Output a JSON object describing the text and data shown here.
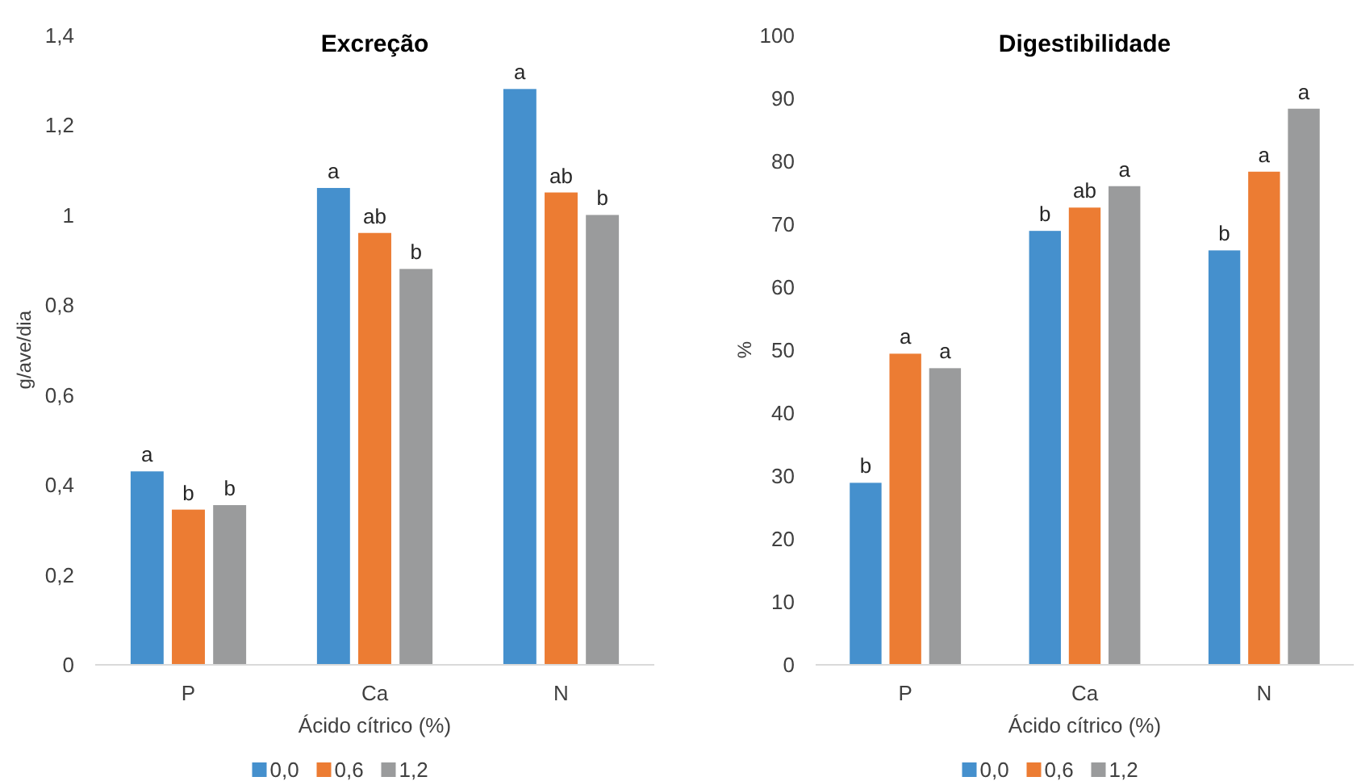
{
  "chart_data": [
    {
      "type": "bar",
      "title": "Excreção",
      "xlabel": "Ácido cítrico (%)",
      "ylabel": "g/ave/dia",
      "categories": [
        "P",
        "Ca",
        "N"
      ],
      "series": [
        {
          "name": "0,0",
          "color": "#4590cd",
          "values": [
            0.43,
            1.06,
            1.28
          ],
          "value_labels": [
            "a",
            "a",
            "a"
          ]
        },
        {
          "name": "0,6",
          "color": "#ec7c33",
          "values": [
            0.345,
            0.96,
            1.05
          ],
          "value_labels": [
            "b",
            "ab",
            "ab"
          ]
        },
        {
          "name": "1,2",
          "color": "#9a9b9c",
          "values": [
            0.355,
            0.88,
            1.0
          ],
          "value_labels": [
            "b",
            "b",
            "b"
          ]
        }
      ],
      "ylim": [
        0,
        1.4
      ],
      "yticks": [
        0,
        {
          "value": 0.2,
          "label": "0,2"
        },
        {
          "value": 0.4,
          "label": "0,4"
        },
        {
          "value": 0.6,
          "label": "0,6"
        },
        {
          "value": 0.8,
          "label": "0,8"
        },
        1,
        {
          "value": 1.2,
          "label": "1,2"
        },
        {
          "value": 1.4,
          "label": "1,4"
        }
      ],
      "legend": "bottom"
    },
    {
      "type": "bar",
      "title": "Digestibilidade",
      "xlabel": "Ácido cítrico (%)",
      "ylabel": "%",
      "categories": [
        "P",
        "Ca",
        "N"
      ],
      "series": [
        {
          "name": "0,0",
          "color": "#4590cd",
          "values": [
            28.9,
            68.9,
            65.8
          ],
          "value_labels": [
            "b",
            "b",
            "b"
          ]
        },
        {
          "name": "0,6",
          "color": "#ec7c33",
          "values": [
            49.4,
            72.6,
            78.3
          ],
          "value_labels": [
            "a",
            "ab",
            "a"
          ]
        },
        {
          "name": "1,2",
          "color": "#9a9b9c",
          "values": [
            47.1,
            76.0,
            88.3
          ],
          "value_labels": [
            "a",
            "a",
            "a"
          ]
        }
      ],
      "ylim": [
        0,
        100
      ],
      "yticks": [
        0,
        10,
        20,
        30,
        40,
        50,
        60,
        70,
        80,
        90,
        100
      ],
      "legend": "bottom"
    }
  ]
}
